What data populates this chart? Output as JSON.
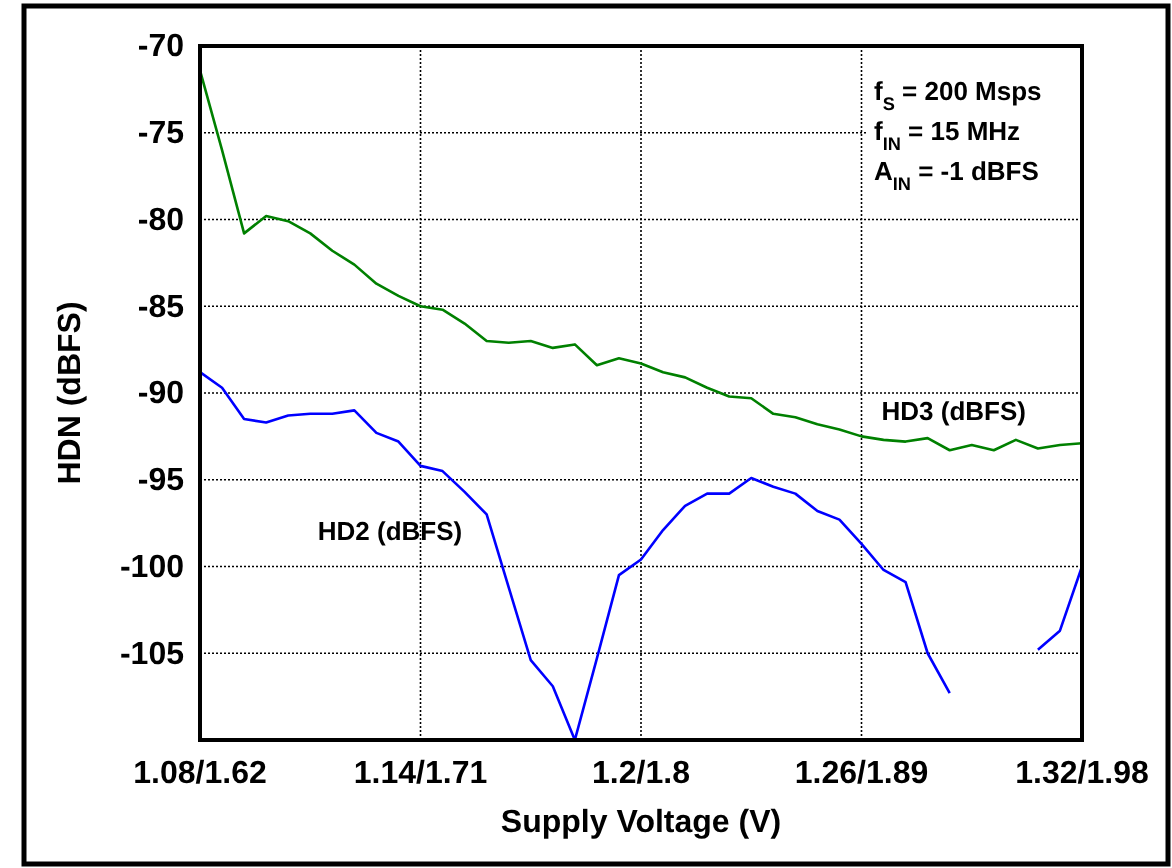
{
  "chart_data": {
    "type": "line",
    "xlabel": "Supply Voltage (V)",
    "ylabel": "HDN (dBFS)",
    "categories": [
      "1.08/1.62",
      null,
      null,
      null,
      null,
      null,
      null,
      null,
      null,
      null,
      "1.14/1.71",
      null,
      null,
      null,
      null,
      null,
      null,
      null,
      null,
      null,
      "1.2/1.8",
      null,
      null,
      null,
      null,
      null,
      null,
      null,
      null,
      null,
      "1.26/1.89",
      null,
      null,
      null,
      null,
      null,
      null,
      null,
      null,
      null,
      "1.32/1.98"
    ],
    "series": [
      {
        "name": "HD3 (dBFS)",
        "color": "#008000",
        "values": [
          -71.4,
          -76.0,
          -80.8,
          -79.8,
          -80.1,
          -80.8,
          -81.8,
          -82.6,
          -83.7,
          -84.4,
          -85.0,
          -85.2,
          -86.0,
          -87.0,
          -87.1,
          -87.0,
          -87.4,
          -87.2,
          -88.4,
          -88.0,
          -88.3,
          -88.8,
          -89.1,
          -89.7,
          -90.2,
          -90.3,
          -91.2,
          -91.4,
          -91.8,
          -92.1,
          -92.5,
          -92.7,
          -92.8,
          -92.6,
          -93.3,
          -93.0,
          -93.3,
          -92.7,
          -93.2,
          -93.0,
          -92.9
        ]
      },
      {
        "name": "HD2 (dBFS)",
        "color": "#0000ff",
        "values": [
          -88.8,
          -89.7,
          -91.5,
          -91.7,
          -91.3,
          -91.2,
          -91.2,
          -91.0,
          -92.3,
          -92.8,
          -94.2,
          -94.5,
          -95.7,
          -97.0,
          -101.2,
          -105.4,
          -106.9,
          -110.0,
          -105.3,
          -100.5,
          -99.6,
          -97.9,
          -96.5,
          -95.8,
          -95.8,
          -94.9,
          -95.4,
          -95.8,
          -96.8,
          -97.3,
          -98.7,
          -100.2,
          -100.9,
          -105.0,
          -107.3,
          null,
          null,
          null,
          -104.8,
          -103.7,
          -100.0
        ]
      }
    ],
    "ylim": [
      -110,
      -70
    ],
    "yticks": [
      -70,
      -75,
      -80,
      -85,
      -90,
      -95,
      -100,
      -105
    ],
    "grid": true,
    "legend": false,
    "marker": "none",
    "line_style": "solid",
    "annotations": [
      "f$_{S}$ = 200 Msps",
      "f$_{IN}$ = 15 MHz",
      "A$_{IN}$ = -1 dBFS"
    ]
  }
}
